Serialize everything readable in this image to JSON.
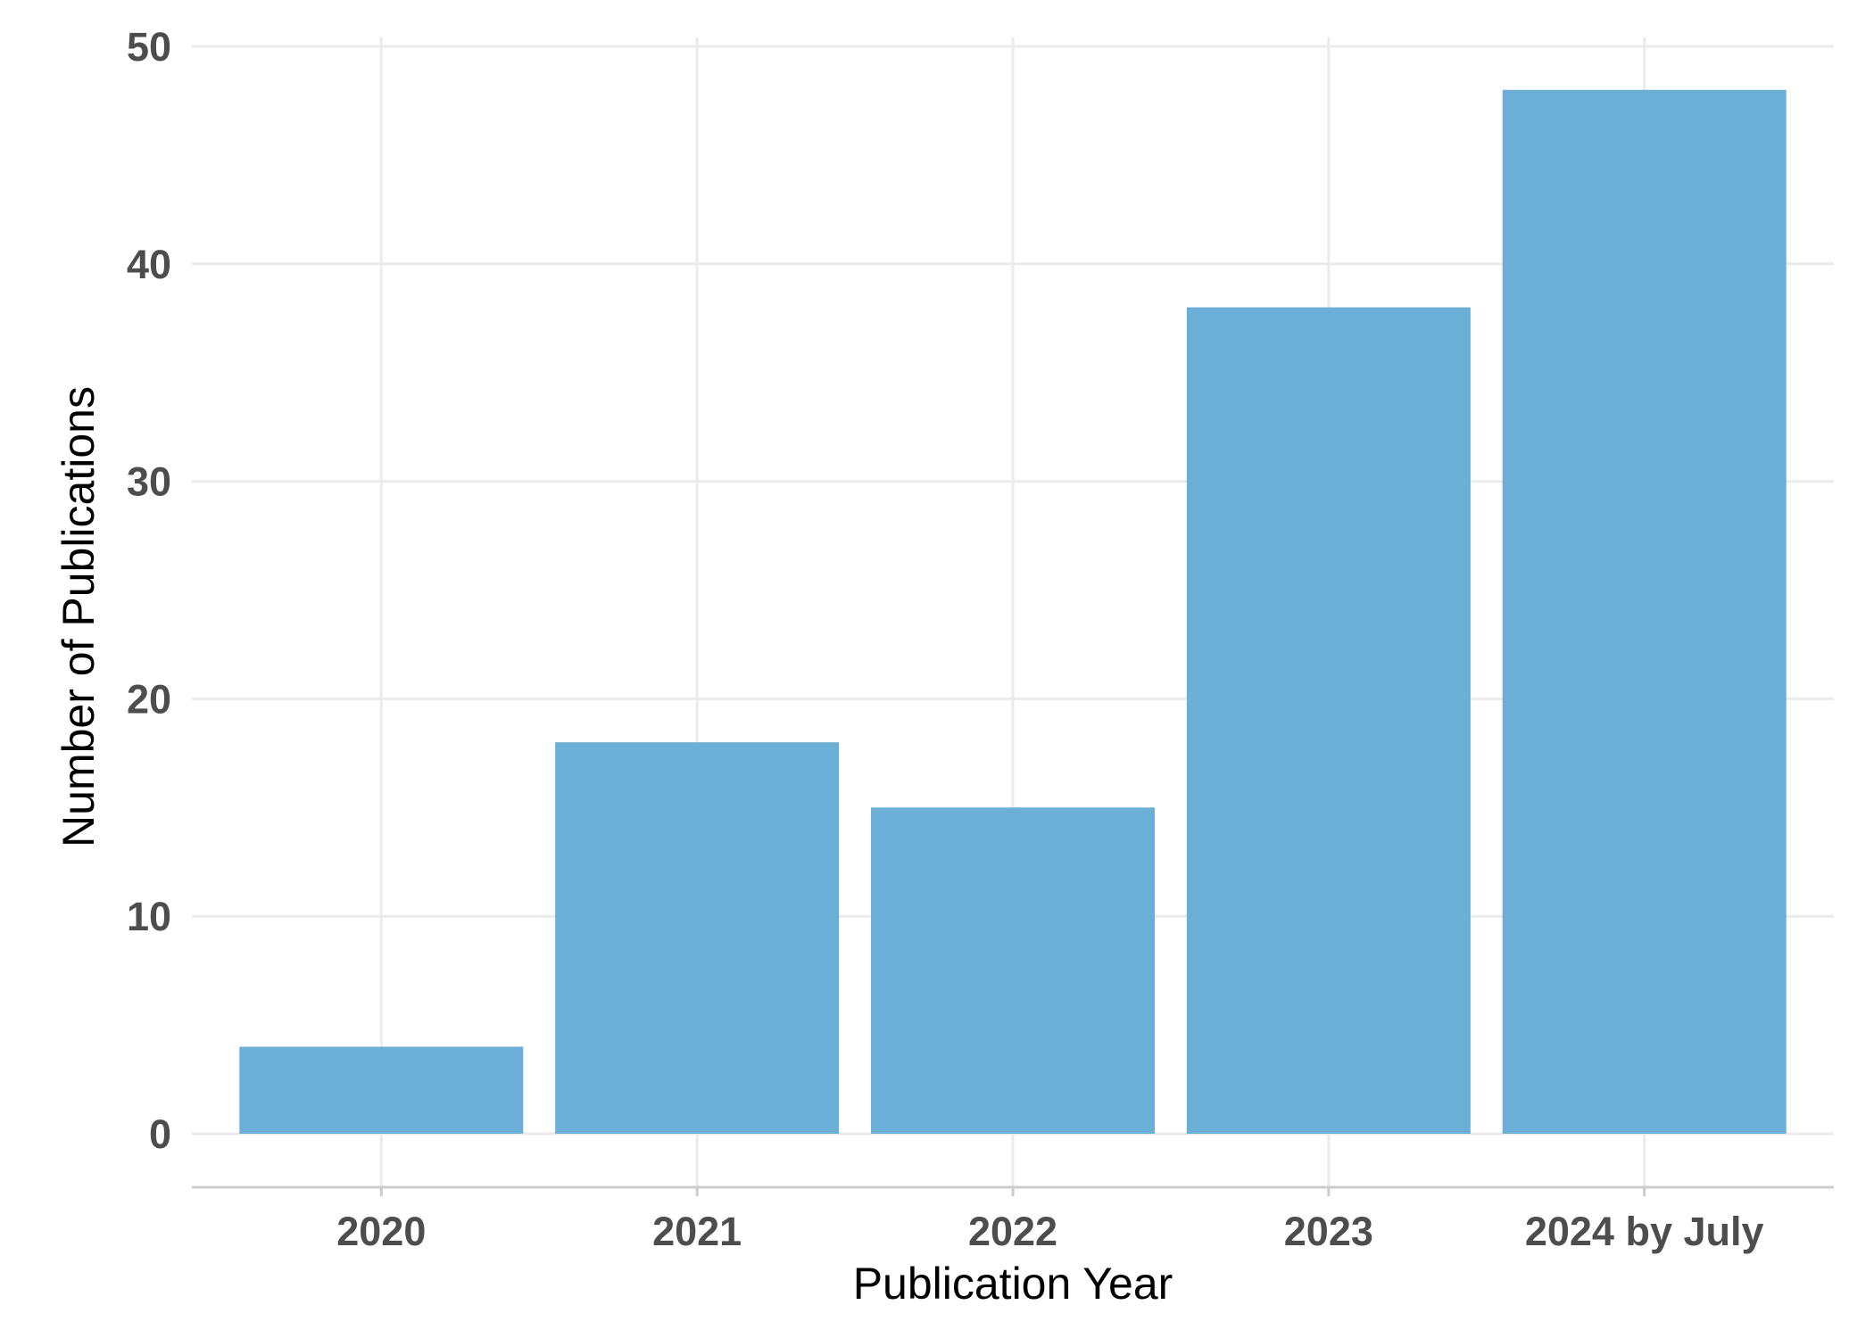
{
  "chart_data": {
    "type": "bar",
    "title": "",
    "xlabel": "Publication Year",
    "ylabel": "Number of Publications",
    "categories": [
      "2020",
      "2021",
      "2022",
      "2023",
      "2024 by July"
    ],
    "values": [
      4,
      18,
      15,
      38,
      48
    ],
    "ylim": [
      0,
      50
    ],
    "yticks": [
      "0",
      "10",
      "20",
      "30",
      "40",
      "50"
    ],
    "grid": true,
    "legend": "none",
    "bar_color": "#6baed6",
    "grid_color": "#ebebeb",
    "text_color": "#4d4d4d"
  }
}
